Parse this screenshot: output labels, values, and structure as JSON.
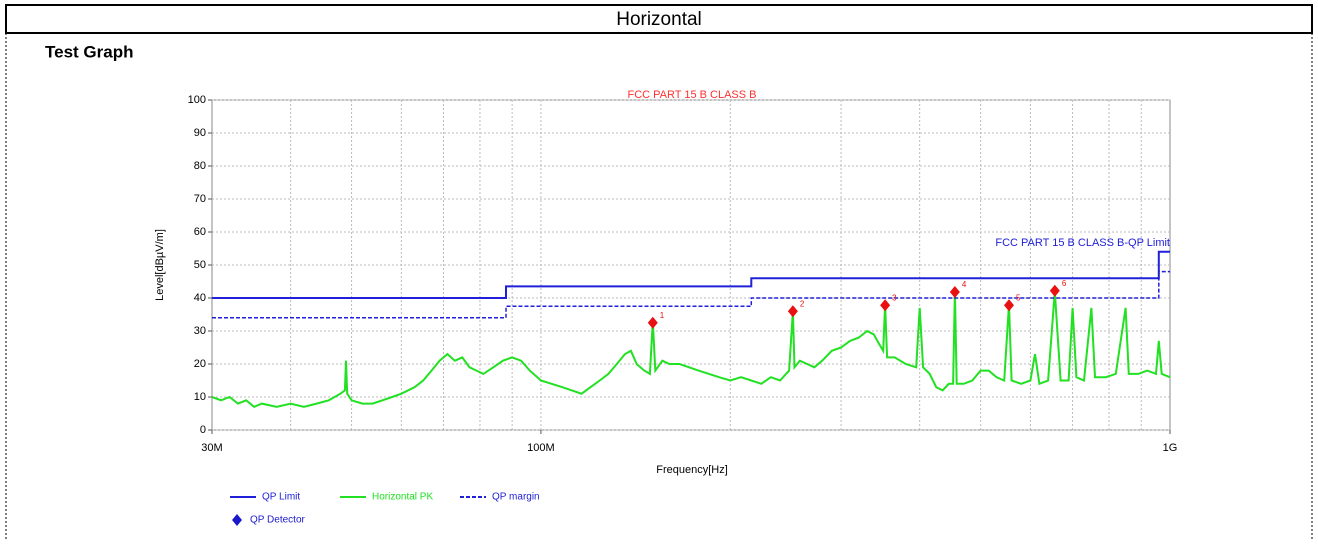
{
  "header": {
    "title": "Horizontal",
    "section": "Test Graph"
  },
  "chart_data": {
    "type": "line",
    "title": "FCC PART 15 B CLASS B",
    "annotation": "FCC PART 15 B CLASS B-QP Limit",
    "x_label": "Frequency[Hz]",
    "y_label": "Level[dBµV/m]",
    "xscale": "log",
    "grid": true,
    "xlim": [
      30000000.0,
      1000000000.0
    ],
    "xticks": [
      {
        "value": 30000000.0,
        "label": "30M"
      },
      {
        "value": 100000000.0,
        "label": "100M"
      },
      {
        "value": 1000000000.0,
        "label": "1G"
      }
    ],
    "ylim": [
      0,
      100
    ],
    "yticks": [
      0,
      10,
      20,
      30,
      40,
      50,
      60,
      70,
      80,
      90,
      100
    ],
    "series": [
      {
        "name": "QP Limit",
        "color": "#2020d8",
        "dash": false,
        "x": [
          30000000.0,
          88000000.0,
          88000000.0,
          216000000.0,
          216000000.0,
          960000000.0,
          960000000.0,
          1000000000.0
        ],
        "values": [
          40,
          40,
          43.5,
          43.5,
          46,
          46,
          54,
          54
        ]
      },
      {
        "name": "Horizontal PK",
        "color": "#22e022",
        "dash": false,
        "x": [
          30000000.0,
          31000000.0,
          32000000.0,
          33000000.0,
          34000000.0,
          35000000.0,
          36000000.0,
          38000000.0,
          40000000.0,
          42000000.0,
          44000000.0,
          46000000.0,
          48000000.0,
          48800000.0,
          49000000.0,
          49200000.0,
          50000000.0,
          52000000.0,
          54000000.0,
          56000000.0,
          58000000.0,
          60000000.0,
          63000000.0,
          65000000.0,
          67000000.0,
          69000000.0,
          71000000.0,
          73000000.0,
          75000000.0,
          77000000.0,
          79000000.0,
          81000000.0,
          84000000.0,
          87000000.0,
          90000000.0,
          93000000.0,
          96000000.0,
          100000000.0,
          104000000.0,
          108000000.0,
          112000000.0,
          116000000.0,
          120000000.0,
          124000000.0,
          128000000.0,
          132000000.0,
          136000000.0,
          139000000.0,
          142000000.0,
          146000000.0,
          149000000.0,
          150600000.0,
          152000000.0,
          156000000.0,
          160000000.0,
          166000000.0,
          172000000.0,
          178000000.0,
          185000000.0,
          192000000.0,
          200000000.0,
          208000000.0,
          216000000.0,
          224000000.0,
          232000000.0,
          240000000.0,
          248000000.0,
          251500000.0,
          253000000.0,
          258000000.0,
          265000000.0,
          272000000.0,
          280000000.0,
          290000000.0,
          300000000.0,
          310000000.0,
          320000000.0,
          330000000.0,
          338000000.0,
          345000000.0,
          350000000.0,
          352500000.0,
          355000000.0,
          365000000.0,
          380000000.0,
          395000000.0,
          400000000.0,
          405000000.0,
          415000000.0,
          425000000.0,
          435000000.0,
          445000000.0,
          452000000.0,
          455000000.0,
          458000000.0,
          470000000.0,
          485000000.0,
          500000000.0,
          515000000.0,
          530000000.0,
          545000000.0,
          554700000.0,
          560000000.0,
          580000000.0,
          600000000.0,
          610000000.0,
          620000000.0,
          640000000.0,
          656000000.0,
          670000000.0,
          690000000.0,
          700000000.0,
          710000000.0,
          730000000.0,
          750000000.0,
          760000000.0,
          790000000.0,
          820000000.0,
          850000000.0,
          860000000.0,
          890000000.0,
          920000000.0,
          950000000.0,
          960000000.0,
          970000000.0,
          1000000000.0
        ],
        "values": [
          10,
          9,
          10,
          8,
          9,
          7,
          8,
          7,
          8,
          7,
          8,
          9,
          11,
          12,
          21,
          11,
          9,
          8,
          8,
          9,
          10,
          11,
          13,
          15,
          18,
          21,
          23,
          21,
          22,
          19,
          18,
          17,
          19,
          21,
          22,
          21,
          18,
          15,
          14,
          13,
          12,
          11,
          13,
          15,
          17,
          20,
          23,
          24,
          20,
          18,
          17,
          33,
          18,
          21,
          20,
          20,
          19,
          18,
          17,
          16,
          15,
          16,
          15,
          14,
          16,
          15,
          18,
          36,
          19,
          21,
          20,
          19,
          21,
          24,
          25,
          27,
          28,
          30,
          29,
          26,
          24,
          38,
          22,
          22,
          20,
          19,
          37,
          19,
          17,
          13,
          12,
          14,
          14,
          42,
          14,
          14,
          15,
          18,
          18,
          16,
          15,
          38,
          15,
          14,
          15,
          23,
          14,
          15,
          42,
          15,
          15,
          37,
          16,
          15,
          37,
          16,
          16,
          17,
          37,
          17,
          17,
          18,
          17,
          27,
          17,
          16
        ]
      },
      {
        "name": "QP margin",
        "color": "#2020d8",
        "dash": true,
        "x": [
          30000000.0,
          88000000.0,
          88000000.0,
          216000000.0,
          216000000.0,
          960000000.0,
          960000000.0,
          1000000000.0
        ],
        "values": [
          34,
          34,
          37.5,
          37.5,
          40,
          40,
          48,
          48
        ]
      }
    ],
    "markers": {
      "name": "QP Detector",
      "color": "#e81010",
      "legend_color": "#1a1acc",
      "x": [
        150600000.0,
        251500000.0,
        352500000.0,
        455000000.0,
        554700000.0,
        656000000.0
      ],
      "values": [
        32.5,
        36,
        37.8,
        41.8,
        37.8,
        42.2
      ],
      "labels": [
        "1",
        "2",
        "3",
        "4",
        "5",
        "6"
      ]
    }
  }
}
